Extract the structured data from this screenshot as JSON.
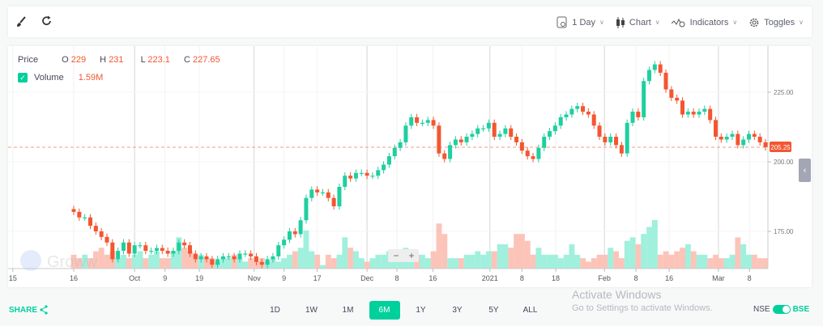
{
  "toolbar": {
    "left_icons": [
      "brush-icon",
      "refresh-icon"
    ],
    "interval": "1 Day",
    "chart": "Chart",
    "indicators": "Indicators",
    "toggles": "Toggles"
  },
  "legend": {
    "price_label": "Price",
    "o_label": "O",
    "o": "229",
    "h_label": "H",
    "h": "231",
    "l_label": "L",
    "l": "223.1",
    "c_label": "C",
    "c": "227.65",
    "volume_label": "Volume",
    "volume_value": "1.59M",
    "volume_checked": true
  },
  "watermark": "Groww",
  "zoom_controls": {
    "minus": "−",
    "plus": "+"
  },
  "current_price_label": "205.25",
  "colors": {
    "up": "#1fcf9f",
    "down": "#f35631",
    "up_volume": "#a0f0dd",
    "down_volume": "#fcc4b9",
    "accent": "#00d09c"
  },
  "chart_data": {
    "type": "candlestick",
    "y_axis": {
      "ticks": [
        "175.00",
        "200.00",
        "225.00"
      ],
      "tick_values": [
        175,
        200,
        225
      ],
      "range": [
        160,
        240
      ],
      "position": "right"
    },
    "x_axis": {
      "ticks": [
        {
          "label": "15",
          "index": -11
        },
        {
          "label": "16",
          "index": 0
        },
        {
          "label": "Oct",
          "index": 11
        },
        {
          "label": "9",
          "index": 16.5
        },
        {
          "label": "19",
          "index": 22.7
        },
        {
          "label": "Nov",
          "index": 32.6
        },
        {
          "label": "9",
          "index": 38
        },
        {
          "label": "17",
          "index": 44
        },
        {
          "label": "Dec",
          "index": 53
        },
        {
          "label": "8",
          "index": 58.4
        },
        {
          "label": "16",
          "index": 64.9
        },
        {
          "label": "2021",
          "index": 75.2
        },
        {
          "label": "8",
          "index": 81
        },
        {
          "label": "18",
          "index": 87.1
        },
        {
          "label": "Feb",
          "index": 95.9
        },
        {
          "label": "8",
          "index": 101.6
        },
        {
          "label": "16",
          "index": 107.6
        },
        {
          "label": "Mar",
          "index": 116.5
        },
        {
          "label": "8",
          "index": 122.1
        }
      ],
      "major": [
        "Oct",
        "Nov",
        "Dec",
        "2021",
        "Feb",
        "Mar"
      ]
    },
    "last_price": 205.25,
    "closes": [
      182,
      180,
      180,
      177,
      175,
      173,
      171,
      165,
      168,
      171,
      167,
      170,
      170,
      168,
      168,
      169,
      168,
      167,
      168,
      171,
      170,
      167,
      165,
      166,
      165,
      163,
      165,
      166,
      166,
      165,
      167,
      167,
      166,
      164,
      163,
      165,
      166,
      170,
      172,
      175,
      174,
      179,
      187,
      190,
      189,
      189,
      187,
      184,
      191,
      195,
      194,
      196,
      196,
      195,
      195,
      197,
      199,
      202,
      205,
      207,
      213,
      216,
      214,
      214,
      215,
      213,
      203,
      201,
      206,
      208,
      207,
      209,
      210,
      212,
      212,
      214,
      209,
      210,
      212,
      209,
      207,
      204,
      202,
      201,
      205,
      209,
      211,
      213,
      216,
      217,
      219,
      220,
      218,
      217,
      213,
      209,
      207,
      209,
      206,
      203,
      214,
      218,
      216,
      229,
      233,
      235,
      232,
      226,
      223,
      222,
      217,
      218,
      217,
      218,
      219,
      215,
      209,
      208,
      209,
      210,
      206,
      208,
      210,
      209,
      207,
      205.25
    ],
    "volumes_millions": [
      4,
      3,
      4,
      3,
      5,
      6,
      4,
      5,
      3,
      4,
      3,
      4,
      5,
      3,
      4,
      5,
      3,
      3,
      5,
      9,
      6,
      5,
      4,
      4,
      3,
      3,
      2,
      3,
      3,
      4,
      3,
      2,
      3,
      2,
      3,
      2,
      3,
      2,
      3,
      4,
      5,
      6,
      11,
      5,
      4,
      1,
      4,
      3,
      4,
      9,
      6,
      5,
      3,
      2,
      3,
      4,
      4,
      5,
      3,
      5,
      6,
      5,
      4,
      4,
      3,
      5,
      13,
      10,
      3,
      3,
      3,
      4,
      4,
      5,
      4,
      5,
      5,
      7,
      7,
      6,
      10,
      10,
      8,
      4,
      6,
      4,
      4,
      4,
      3,
      4,
      7,
      4,
      3,
      2,
      3,
      4,
      4,
      6,
      5,
      3,
      8,
      9,
      7,
      10,
      12,
      14,
      4,
      5,
      4,
      5,
      6,
      7,
      5,
      4,
      4,
      3,
      4,
      3,
      3,
      4,
      9,
      7,
      4,
      4,
      3,
      3
    ],
    "volume_unit": "M"
  },
  "bottom": {
    "share": "SHARE",
    "ranges": [
      "1D",
      "1W",
      "1M",
      "6M",
      "1Y",
      "3Y",
      "5Y",
      "ALL"
    ],
    "active_range": "6M",
    "exchange_left": "NSE",
    "exchange_right": "BSE",
    "exchange_selected": "BSE"
  },
  "os_overlay": {
    "title": "Activate Windows",
    "subtitle": "Go to Settings to activate Windows."
  }
}
